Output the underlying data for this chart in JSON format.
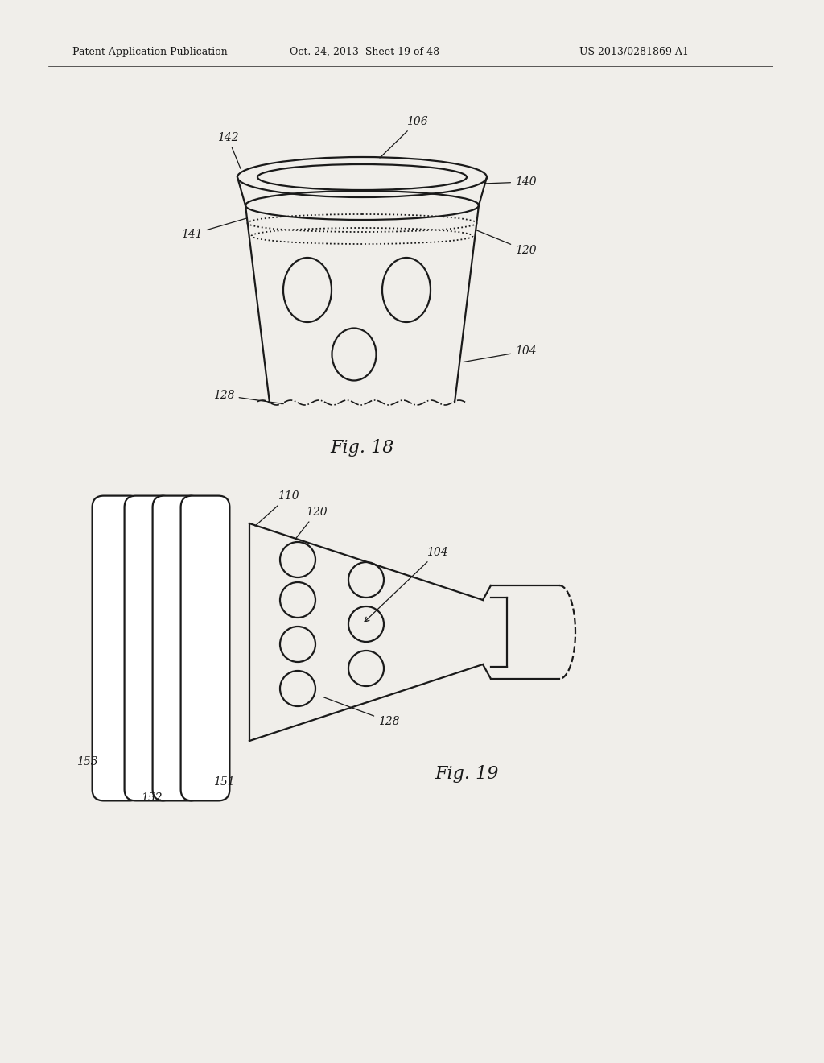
{
  "bg_color": "#f0eeea",
  "line_color": "#1a1a1a",
  "header_left": "Patent Application Publication",
  "header_mid": "Oct. 24, 2013  Sheet 19 of 48",
  "header_right": "US 2013/0281869 A1",
  "fig18_label": "Fig. 18",
  "fig19_label": "Fig. 19"
}
